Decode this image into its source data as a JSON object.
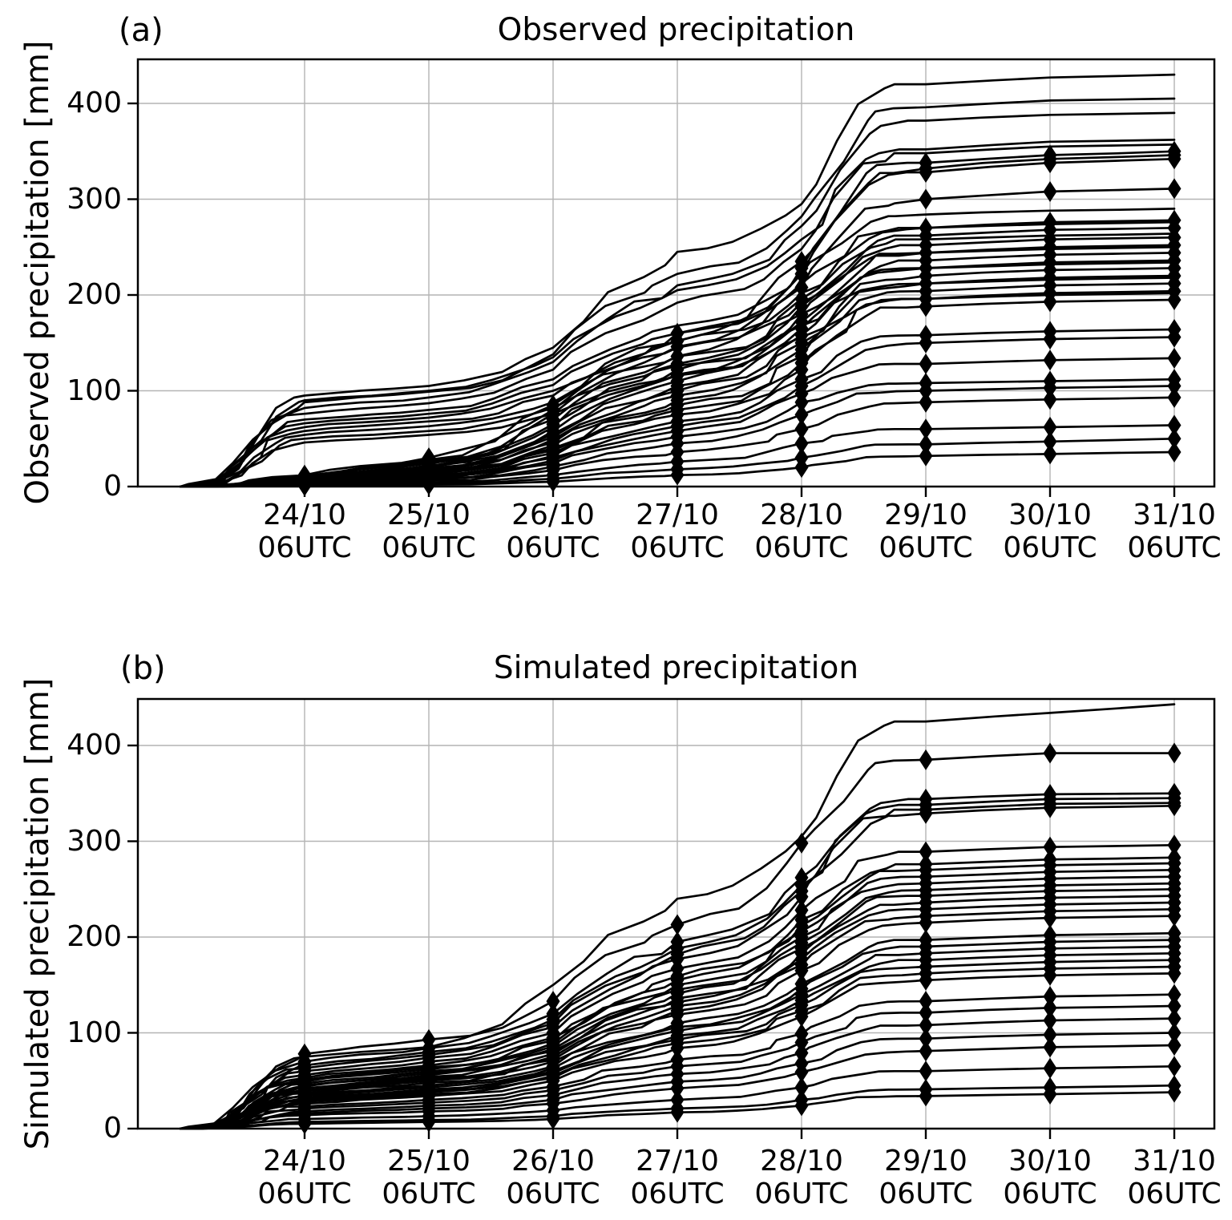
{
  "figure": {
    "background": "#ffffff"
  },
  "colors": {
    "line": "#000000",
    "grid": "#b4b4b4",
    "axis": "#000000",
    "text": "#000000"
  },
  "chart_data": [
    {
      "type": "line",
      "panel_label": "(a)",
      "title": "Observed precipitation",
      "ylabel": "Observed precipitation [mm]",
      "xlabel": "",
      "x_days": [
        23,
        24,
        25,
        26,
        27,
        28,
        29,
        30,
        31
      ],
      "x_tick_days": [
        24,
        25,
        26,
        27,
        28,
        29,
        30,
        31
      ],
      "x_tick_labels": [
        [
          "24/10",
          "06UTC"
        ],
        [
          "25/10",
          "06UTC"
        ],
        [
          "26/10",
          "06UTC"
        ],
        [
          "27/10",
          "06UTC"
        ],
        [
          "28/10",
          "06UTC"
        ],
        [
          "29/10",
          "06UTC"
        ],
        [
          "30/10",
          "06UTC"
        ],
        [
          "31/10",
          "06UTC"
        ]
      ],
      "yticks": [
        0,
        100,
        200,
        300,
        400
      ],
      "ylim": [
        0,
        446
      ],
      "xlim": [
        22.66,
        31.32
      ],
      "grid": true,
      "marker": "thin-diamond",
      "marker_days": [
        24,
        25,
        26,
        27,
        28,
        29,
        30,
        31
      ],
      "series": [
        {
          "marked": false,
          "values": [
            0,
            95,
            105,
            145,
            245,
            295,
            420,
            427,
            430
          ]
        },
        {
          "marked": false,
          "values": [
            0,
            88,
            99,
            138,
            222,
            282,
            396,
            403,
            405
          ]
        },
        {
          "marked": false,
          "values": [
            0,
            82,
            93,
            130,
            210,
            272,
            382,
            388,
            390
          ]
        },
        {
          "marked": false,
          "values": [
            0,
            90,
            100,
            135,
            205,
            258,
            352,
            360,
            362
          ]
        },
        {
          "marked": false,
          "values": [
            0,
            76,
            87,
            122,
            192,
            248,
            348,
            355,
            357
          ]
        },
        {
          "marked": false,
          "values": [
            0,
            70,
            80,
            112,
            168,
            222,
            284,
            288,
            290
          ]
        },
        {
          "marked": false,
          "values": [
            0,
            66,
            76,
            106,
            160,
            212,
            270,
            274,
            276
          ]
        },
        {
          "marked": false,
          "values": [
            0,
            62,
            72,
            100,
            152,
            202,
            258,
            262,
            264
          ]
        },
        {
          "marked": false,
          "values": [
            0,
            58,
            68,
            95,
            145,
            192,
            244,
            248,
            250
          ]
        },
        {
          "marked": false,
          "values": [
            0,
            54,
            63,
            88,
            136,
            180,
            228,
            232,
            234
          ]
        },
        {
          "marked": false,
          "values": [
            0,
            50,
            58,
            82,
            126,
            168,
            212,
            216,
            218
          ]
        },
        {
          "marked": false,
          "values": [
            0,
            46,
            54,
            76,
            117,
            156,
            196,
            200,
            202
          ]
        },
        {
          "marked": true,
          "values": [
            0,
            12,
            30,
            85,
            160,
            235,
            338,
            346,
            350
          ]
        },
        {
          "marked": true,
          "values": [
            0,
            11,
            28,
            80,
            152,
            228,
            332,
            342,
            346
          ]
        },
        {
          "marked": true,
          "values": [
            0,
            10,
            26,
            76,
            146,
            222,
            328,
            338,
            342
          ]
        },
        {
          "marked": true,
          "values": [
            0,
            9,
            24,
            70,
            136,
            208,
            300,
            308,
            311
          ]
        },
        {
          "marked": true,
          "values": [
            0,
            8,
            22,
            65,
            128,
            196,
            270,
            276,
            278
          ]
        },
        {
          "marked": true,
          "values": [
            0,
            8,
            21,
            62,
            122,
            188,
            262,
            268,
            270
          ]
        },
        {
          "marked": true,
          "values": [
            0,
            7,
            20,
            58,
            116,
            180,
            252,
            258,
            260
          ]
        },
        {
          "marked": true,
          "values": [
            0,
            7,
            19,
            55,
            110,
            172,
            244,
            250,
            252
          ]
        },
        {
          "marked": true,
          "values": [
            0,
            6,
            18,
            52,
            105,
            165,
            236,
            242,
            244
          ]
        },
        {
          "marked": true,
          "values": [
            0,
            6,
            17,
            49,
            100,
            158,
            228,
            234,
            236
          ]
        },
        {
          "marked": true,
          "values": [
            0,
            5,
            16,
            46,
            95,
            150,
            220,
            226,
            228
          ]
        },
        {
          "marked": true,
          "values": [
            0,
            5,
            15,
            43,
            90,
            143,
            212,
            218,
            220
          ]
        },
        {
          "marked": true,
          "values": [
            0,
            5,
            14,
            40,
            85,
            136,
            204,
            210,
            212
          ]
        },
        {
          "marked": true,
          "values": [
            0,
            4,
            13,
            38,
            80,
            129,
            196,
            202,
            204
          ]
        },
        {
          "marked": true,
          "values": [
            0,
            4,
            12,
            35,
            75,
            122,
            188,
            193,
            195
          ]
        },
        {
          "marked": true,
          "values": [
            0,
            4,
            11,
            32,
            68,
            112,
            158,
            162,
            164
          ]
        },
        {
          "marked": true,
          "values": [
            0,
            3,
            10,
            30,
            63,
            105,
            150,
            154,
            156
          ]
        },
        {
          "marked": true,
          "values": [
            0,
            3,
            9,
            27,
            58,
            97,
            128,
            132,
            134
          ]
        },
        {
          "marked": true,
          "values": [
            0,
            3,
            8,
            24,
            52,
            88,
            108,
            110,
            112
          ]
        },
        {
          "marked": true,
          "values": [
            0,
            2,
            7,
            21,
            45,
            75,
            100,
            103,
            105
          ]
        },
        {
          "marked": true,
          "values": [
            0,
            2,
            6,
            17,
            36,
            60,
            88,
            91,
            93
          ]
        },
        {
          "marked": true,
          "values": [
            0,
            1,
            4,
            12,
            26,
            45,
            60,
            62,
            64
          ]
        },
        {
          "marked": true,
          "values": [
            0,
            1,
            3,
            8,
            18,
            30,
            44,
            47,
            50
          ]
        },
        {
          "marked": true,
          "values": [
            0,
            1,
            2,
            5,
            12,
            20,
            32,
            34,
            36
          ]
        }
      ]
    },
    {
      "type": "line",
      "panel_label": "(b)",
      "title": "Simulated precipitation",
      "ylabel": "Simulated precipitation [mm]",
      "xlabel": "",
      "x_days": [
        23,
        24,
        25,
        26,
        27,
        28,
        29,
        30,
        31
      ],
      "x_tick_days": [
        24,
        25,
        26,
        27,
        28,
        29,
        30,
        31
      ],
      "x_tick_labels": [
        [
          "24/10",
          "06UTC"
        ],
        [
          "25/10",
          "06UTC"
        ],
        [
          "26/10",
          "06UTC"
        ],
        [
          "27/10",
          "06UTC"
        ],
        [
          "28/10",
          "06UTC"
        ],
        [
          "29/10",
          "06UTC"
        ],
        [
          "30/10",
          "06UTC"
        ],
        [
          "31/10",
          "06UTC"
        ]
      ],
      "yticks": [
        0,
        100,
        200,
        300,
        400
      ],
      "ylim": [
        0,
        448
      ],
      "xlim": [
        22.66,
        31.32
      ],
      "grid": true,
      "marker": "thin-diamond",
      "marker_days": [
        24,
        25,
        26,
        27,
        28,
        29,
        30,
        31
      ],
      "series": [
        {
          "marked": false,
          "values": [
            0,
            75,
            85,
            150,
            240,
            305,
            425,
            434,
            443
          ]
        },
        {
          "marked": true,
          "values": [
            0,
            78,
            93,
            133,
            213,
            298,
            385,
            392,
            392
          ]
        },
        {
          "marked": true,
          "values": [
            0,
            70,
            84,
            120,
            195,
            262,
            344,
            349,
            350
          ]
        },
        {
          "marked": true,
          "values": [
            0,
            66,
            80,
            114,
            188,
            254,
            338,
            344,
            345
          ]
        },
        {
          "marked": true,
          "values": [
            0,
            63,
            77,
            110,
            182,
            248,
            333,
            339,
            340
          ]
        },
        {
          "marked": true,
          "values": [
            0,
            60,
            74,
            106,
            177,
            242,
            329,
            335,
            337
          ]
        },
        {
          "marked": true,
          "values": [
            0,
            56,
            70,
            100,
            167,
            228,
            289,
            294,
            296
          ]
        },
        {
          "marked": true,
          "values": [
            0,
            53,
            66,
            95,
            159,
            218,
            276,
            281,
            283
          ]
        },
        {
          "marked": true,
          "values": [
            0,
            51,
            64,
            92,
            155,
            212,
            270,
            275,
            277
          ]
        },
        {
          "marked": true,
          "values": [
            0,
            49,
            62,
            89,
            150,
            206,
            263,
            268,
            270
          ]
        },
        {
          "marked": true,
          "values": [
            0,
            47,
            60,
            86,
            145,
            200,
            256,
            261,
            263
          ]
        },
        {
          "marked": true,
          "values": [
            0,
            45,
            58,
            83,
            141,
            194,
            249,
            254,
            256
          ]
        },
        {
          "marked": true,
          "values": [
            0,
            44,
            56,
            81,
            136,
            188,
            243,
            248,
            250
          ]
        },
        {
          "marked": true,
          "values": [
            0,
            42,
            54,
            78,
            132,
            183,
            236,
            241,
            243
          ]
        },
        {
          "marked": true,
          "values": [
            0,
            40,
            52,
            75,
            128,
            177,
            229,
            234,
            236
          ]
        },
        {
          "marked": true,
          "values": [
            0,
            39,
            50,
            72,
            123,
            171,
            222,
            227,
            229
          ]
        },
        {
          "marked": true,
          "values": [
            0,
            37,
            48,
            70,
            119,
            165,
            215,
            220,
            222
          ]
        },
        {
          "marked": true,
          "values": [
            0,
            35,
            45,
            65,
            110,
            151,
            197,
            202,
            204
          ]
        },
        {
          "marked": true,
          "values": [
            0,
            34,
            43,
            63,
            106,
            146,
            190,
            195,
            197
          ]
        },
        {
          "marked": true,
          "values": [
            0,
            32,
            41,
            60,
            102,
            140,
            183,
            188,
            190
          ]
        },
        {
          "marked": true,
          "values": [
            0,
            31,
            39,
            58,
            97,
            134,
            176,
            181,
            183
          ]
        },
        {
          "marked": true,
          "values": [
            0,
            29,
            38,
            55,
            93,
            129,
            169,
            174,
            176
          ]
        },
        {
          "marked": true,
          "values": [
            0,
            28,
            36,
            53,
            89,
            123,
            162,
            167,
            169
          ]
        },
        {
          "marked": true,
          "values": [
            0,
            26,
            34,
            50,
            84,
            117,
            155,
            160,
            162
          ]
        },
        {
          "marked": true,
          "values": [
            0,
            23,
            30,
            44,
            72,
            99,
            133,
            138,
            140
          ]
        },
        {
          "marked": true,
          "values": [
            0,
            21,
            27,
            40,
            65,
            90,
            121,
            126,
            128
          ]
        },
        {
          "marked": true,
          "values": [
            0,
            18,
            24,
            35,
            57,
            79,
            108,
            113,
            115
          ]
        },
        {
          "marked": true,
          "values": [
            0,
            16,
            21,
            30,
            49,
            68,
            94,
            98,
            100
          ]
        },
        {
          "marked": true,
          "values": [
            0,
            14,
            18,
            26,
            42,
            59,
            81,
            85,
            87
          ]
        },
        {
          "marked": true,
          "values": [
            0,
            10,
            13,
            19,
            30,
            43,
            60,
            63,
            65
          ]
        },
        {
          "marked": true,
          "values": [
            0,
            7,
            9,
            13,
            21,
            30,
            41,
            43,
            45
          ]
        },
        {
          "marked": true,
          "values": [
            0,
            5,
            7,
            10,
            17,
            24,
            34,
            36,
            38
          ]
        }
      ]
    }
  ],
  "render_hints": {
    "intraday_profile": {
      "23": [
        [
          0.12,
          0.0
        ],
        [
          0.3,
          0.07
        ],
        [
          0.45,
          0.26
        ],
        [
          0.6,
          0.55
        ],
        [
          0.75,
          0.84
        ],
        [
          0.9,
          0.96
        ]
      ],
      "24": [
        [
          0.25,
          0.28
        ],
        [
          0.5,
          0.5
        ],
        [
          0.75,
          0.73
        ]
      ],
      "25": [
        [
          0.3,
          0.12
        ],
        [
          0.55,
          0.34
        ],
        [
          0.8,
          0.72
        ]
      ],
      "26": [
        [
          0.2,
          0.28
        ],
        [
          0.45,
          0.58
        ],
        [
          0.7,
          0.76
        ],
        [
          0.85,
          0.86
        ]
      ],
      "27": [
        [
          0.25,
          0.1
        ],
        [
          0.5,
          0.22
        ],
        [
          0.7,
          0.46
        ],
        [
          0.85,
          0.74
        ]
      ],
      "28": [
        [
          0.12,
          0.18
        ],
        [
          0.3,
          0.52
        ],
        [
          0.5,
          0.86
        ],
        [
          0.65,
          0.95
        ],
        [
          0.8,
          0.985
        ]
      ],
      "29": [
        [
          0.5,
          0.55
        ]
      ],
      "30": [
        [
          0.5,
          0.5
        ]
      ]
    },
    "jitter_u": 0.12,
    "jitter_v": 0.07,
    "marker_half_width": 8.5,
    "marker_half_height": 13
  }
}
